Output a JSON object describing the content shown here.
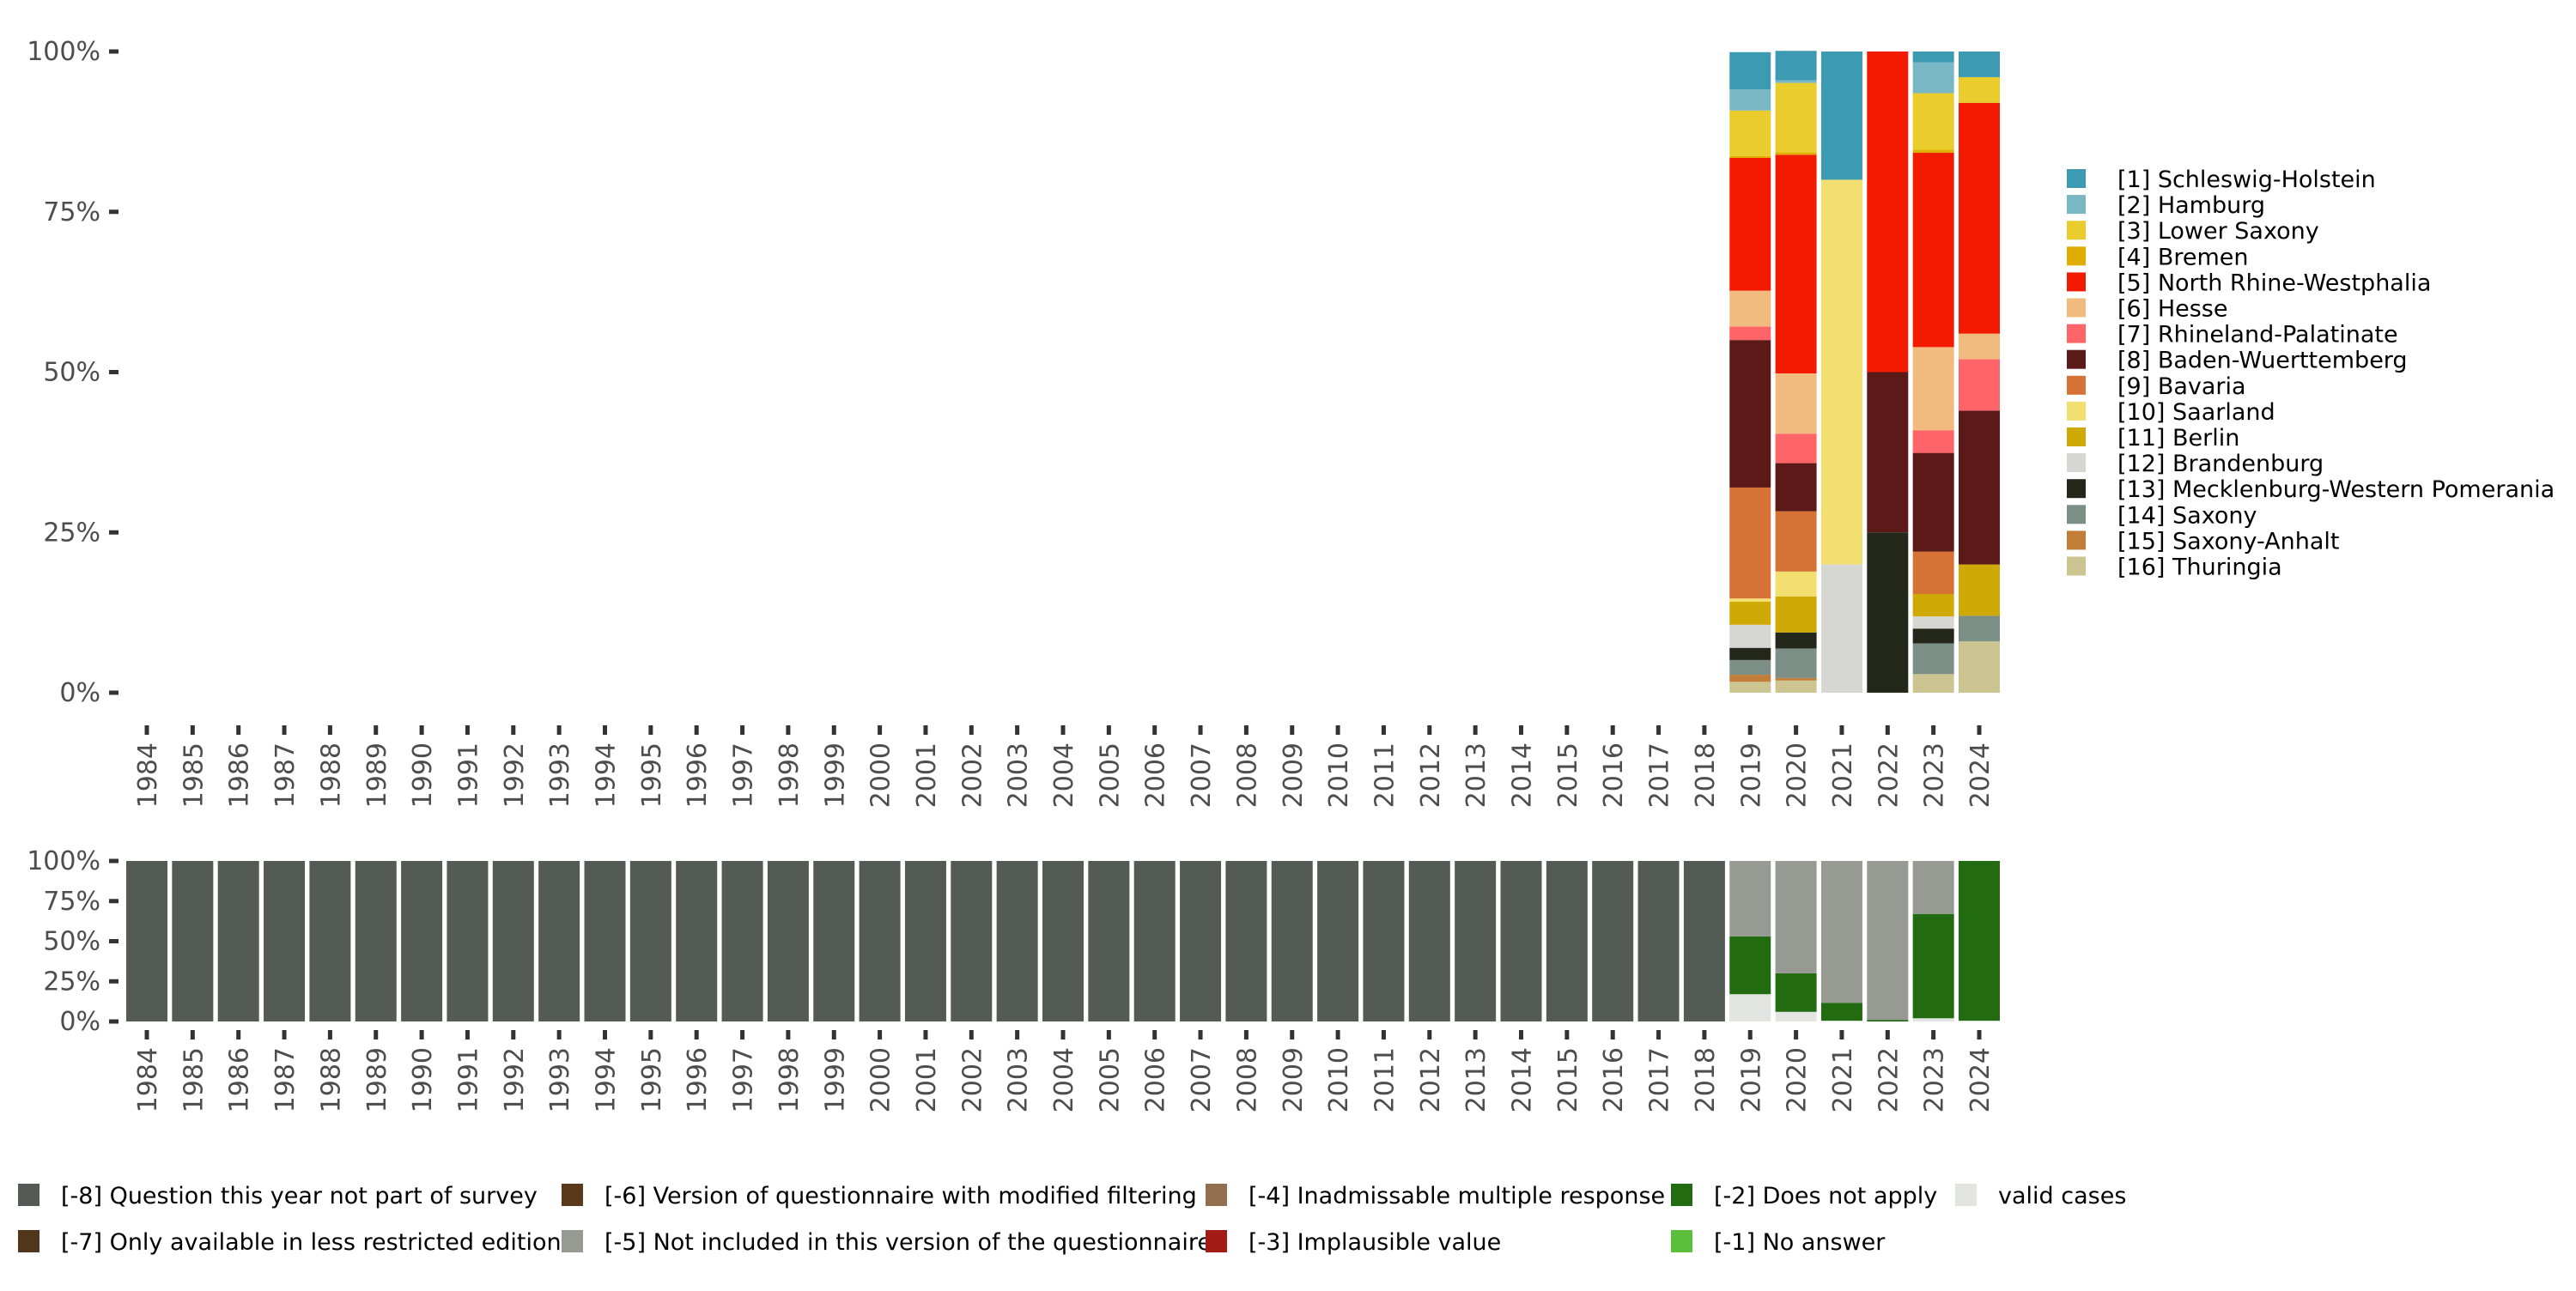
{
  "chart_data": [
    {
      "type": "bar",
      "stacked": true,
      "normalized": true,
      "title": "",
      "xlabel": "",
      "ylabel": "",
      "ylim": [
        0,
        100
      ],
      "y_ticks": [
        "0%",
        "25%",
        "50%",
        "75%",
        "100%"
      ],
      "y_tick_values": [
        0,
        25,
        50,
        75,
        100
      ],
      "categories": [
        "1984",
        "1985",
        "1986",
        "1987",
        "1988",
        "1989",
        "1990",
        "1991",
        "1992",
        "1993",
        "1994",
        "1995",
        "1996",
        "1997",
        "1998",
        "1999",
        "2000",
        "2001",
        "2002",
        "2003",
        "2004",
        "2005",
        "2006",
        "2007",
        "2008",
        "2009",
        "2010",
        "2011",
        "2012",
        "2013",
        "2014",
        "2015",
        "2016",
        "2017",
        "2018",
        "2019",
        "2020",
        "2021",
        "2022",
        "2023",
        "2024"
      ],
      "legend_position": "right",
      "series": [
        {
          "name": "[1] Schleswig-Holstein",
          "color": "#3d9ab3",
          "values": {
            "2019": 5.8,
            "2020": 4.6,
            "2021": 20.0,
            "2022": 0,
            "2023": 1.7,
            "2024": 4.0
          }
        },
        {
          "name": "[2] Hamburg",
          "color": "#7ab7c5",
          "values": {
            "2019": 3.3,
            "2020": 0.4,
            "2021": 0,
            "2022": 0,
            "2023": 4.8,
            "2024": 0
          }
        },
        {
          "name": "[3] Lower Saxony",
          "color": "#eacc2c",
          "values": {
            "2019": 7.1,
            "2020": 10.8,
            "2021": 0,
            "2022": 0,
            "2023": 8.8,
            "2024": 4.0
          }
        },
        {
          "name": "[4] Bremen",
          "color": "#e0ae00",
          "values": {
            "2019": 0.3,
            "2020": 0.4,
            "2021": 0,
            "2022": 0,
            "2023": 0.5,
            "2024": 0
          }
        },
        {
          "name": "[5] North Rhine-Westphalia",
          "color": "#f21a00",
          "values": {
            "2019": 20.7,
            "2020": 34.1,
            "2021": 0,
            "2022": 50.0,
            "2023": 30.3,
            "2024": 36.0
          }
        },
        {
          "name": "[6] Hesse",
          "color": "#f1bb7f",
          "values": {
            "2019": 5.6,
            "2020": 9.4,
            "2021": 0,
            "2022": 0,
            "2023": 13.0,
            "2024": 4.0
          }
        },
        {
          "name": "[7] Rhineland-Palatinate",
          "color": "#ff6468",
          "values": {
            "2019": 2.1,
            "2020": 4.6,
            "2021": 0,
            "2022": 0,
            "2023": 3.5,
            "2024": 8.0
          }
        },
        {
          "name": "[8] Baden-Wuerttemberg",
          "color": "#5b1a18",
          "values": {
            "2019": 23.0,
            "2020": 7.5,
            "2021": 0,
            "2022": 25.0,
            "2023": 15.4,
            "2024": 24.0
          }
        },
        {
          "name": "[9] Bavaria",
          "color": "#d67236",
          "values": {
            "2019": 17.3,
            "2020": 9.4,
            "2021": 0,
            "2022": 0,
            "2023": 6.6,
            "2024": 0
          }
        },
        {
          "name": "[10] Saarland",
          "color": "#f2df6f",
          "values": {
            "2019": 0.5,
            "2020": 3.9,
            "2021": 60.0,
            "2022": 0,
            "2023": 0,
            "2024": 0
          }
        },
        {
          "name": "[11] Berlin",
          "color": "#cfaa06",
          "values": {
            "2019": 3.6,
            "2020": 5.6,
            "2021": 0,
            "2022": 0,
            "2023": 3.5,
            "2024": 8.0
          }
        },
        {
          "name": "[12] Brandenburg",
          "color": "#d6d6d3",
          "values": {
            "2019": 3.6,
            "2020": 0,
            "2021": 20.0,
            "2022": 0,
            "2023": 1.9,
            "2024": 0
          }
        },
        {
          "name": "[13] Mecklenburg-Western Pomerania",
          "color": "#24281a",
          "values": {
            "2019": 1.9,
            "2020": 2.5,
            "2021": 0,
            "2022": 25.0,
            "2023": 2.3,
            "2024": 0
          }
        },
        {
          "name": "[14] Saxony",
          "color": "#7b8f87",
          "values": {
            "2019": 2.3,
            "2020": 4.6,
            "2021": 0,
            "2022": 0,
            "2023": 4.8,
            "2024": 4.0
          }
        },
        {
          "name": "[15] Saxony-Anhalt",
          "color": "#c27d38",
          "values": {
            "2019": 1.1,
            "2020": 0.4,
            "2021": 0,
            "2022": 0,
            "2023": 0,
            "2024": 0
          }
        },
        {
          "name": "[16] Thuringia",
          "color": "#ccc591",
          "values": {
            "2019": 1.7,
            "2020": 1.9,
            "2021": 0,
            "2022": 0,
            "2023": 2.9,
            "2024": 8.0
          }
        }
      ]
    },
    {
      "type": "bar",
      "stacked": true,
      "normalized": true,
      "title": "",
      "xlabel": "",
      "ylabel": "",
      "ylim": [
        0,
        100
      ],
      "y_ticks": [
        "0%",
        "25%",
        "50%",
        "75%",
        "100%"
      ],
      "y_tick_values": [
        0,
        25,
        50,
        75,
        100
      ],
      "categories": [
        "1984",
        "1985",
        "1986",
        "1987",
        "1988",
        "1989",
        "1990",
        "1991",
        "1992",
        "1993",
        "1994",
        "1995",
        "1996",
        "1997",
        "1998",
        "1999",
        "2000",
        "2001",
        "2002",
        "2003",
        "2004",
        "2005",
        "2006",
        "2007",
        "2008",
        "2009",
        "2010",
        "2011",
        "2012",
        "2013",
        "2014",
        "2015",
        "2016",
        "2017",
        "2018",
        "2019",
        "2020",
        "2021",
        "2022",
        "2023",
        "2024"
      ],
      "legend_position": "bottom",
      "series": [
        {
          "name": "[-8] Question this year not part of survey",
          "color": "#545b54",
          "values_note": "100 for 1984-2018",
          "values": {
            "1984": 100,
            "1985": 100,
            "1986": 100,
            "1987": 100,
            "1988": 100,
            "1989": 100,
            "1990": 100,
            "1991": 100,
            "1992": 100,
            "1993": 100,
            "1994": 100,
            "1995": 100,
            "1996": 100,
            "1997": 100,
            "1998": 100,
            "1999": 100,
            "2000": 100,
            "2001": 100,
            "2002": 100,
            "2003": 100,
            "2004": 100,
            "2005": 100,
            "2006": 100,
            "2007": 100,
            "2008": 100,
            "2009": 100,
            "2010": 100,
            "2011": 100,
            "2012": 100,
            "2013": 100,
            "2014": 100,
            "2015": 100,
            "2016": 100,
            "2017": 100,
            "2018": 100
          }
        },
        {
          "name": "[-7] Only available in less restricted edition",
          "color": "#52361b",
          "values": {}
        },
        {
          "name": "[-6] Version of questionnaire with modified filtering",
          "color": "#5a381c",
          "values": {}
        },
        {
          "name": "[-5] Not included in this version of the questionnaire",
          "color": "#969a92",
          "values": {
            "2019": 47,
            "2020": 70,
            "2021": 88.5,
            "2022": 99,
            "2023": 33,
            "2024": 0
          }
        },
        {
          "name": "[-4] Inadmissable multiple response",
          "color": "#92704f",
          "values": {}
        },
        {
          "name": "[-3] Implausible value",
          "color": "#a21b14",
          "values": {}
        },
        {
          "name": "[-2] Does not apply",
          "color": "#226b10",
          "values": {
            "2019": 36,
            "2020": 24,
            "2021": 11,
            "2022": 1,
            "2023": 65,
            "2024": 99.5
          }
        },
        {
          "name": "[-1] No answer",
          "color": "#5bbf3d",
          "values": {}
        },
        {
          "name": "valid cases",
          "color": "#e1e4e0",
          "values": {
            "2019": 17,
            "2020": 6,
            "2021": 0.5,
            "2022": 0,
            "2023": 2,
            "2024": 0.5
          }
        }
      ]
    }
  ]
}
